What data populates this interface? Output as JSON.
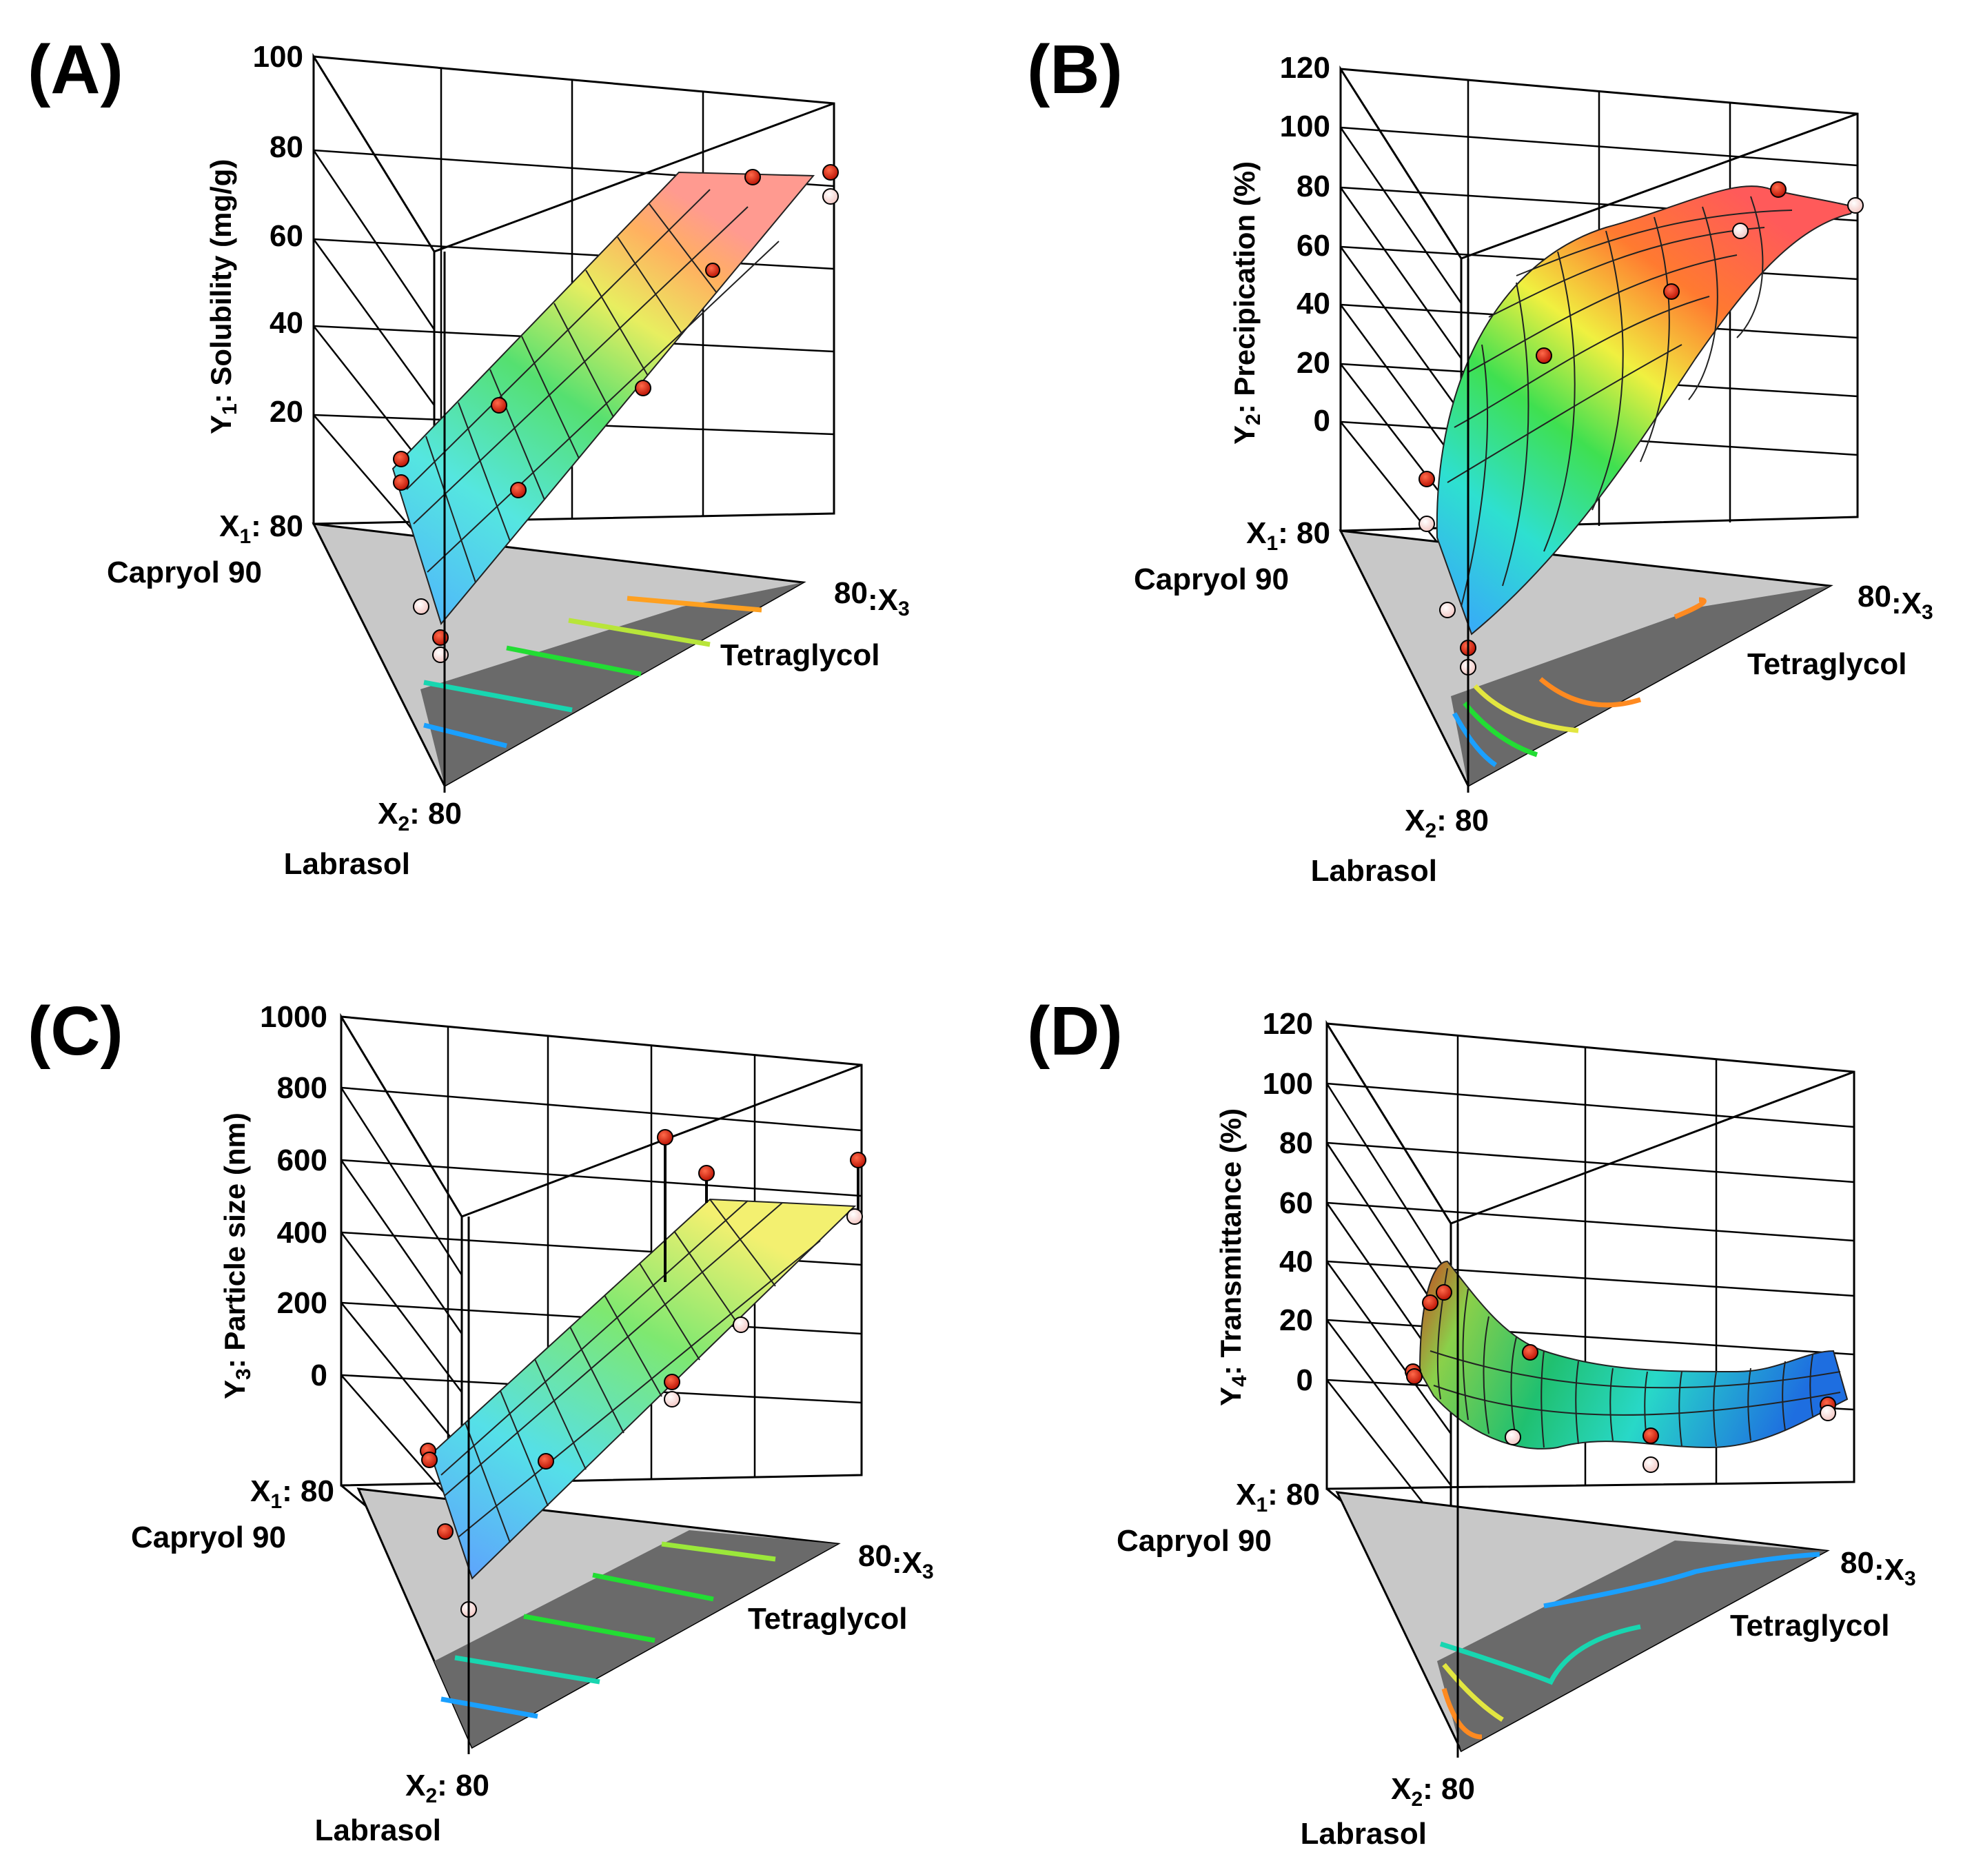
{
  "chart_data": [
    {
      "type": "ternary-surface",
      "panel": "(A)",
      "title": "",
      "z_label": "Y",
      "z_label_sub": "1",
      "z_label_rest": ": Solubility (mg/g)",
      "z_ticks": [
        "100",
        "80",
        "60",
        "40",
        "20"
      ],
      "corner_x1": "X1: 80",
      "corner_x1_name": "Capryol 90",
      "corner_x2": "X2: 80",
      "corner_x2_name": "Labrasol",
      "corner_x3": "80:X3",
      "corner_x3_name": "Tetraglycol",
      "surface_range": [
        5,
        80
      ],
      "contour_colors": [
        "#1aa0ff",
        "#18d6b0",
        "#22dd33",
        "#b8e53a",
        "#ffa020"
      ]
    },
    {
      "type": "ternary-surface",
      "panel": "(B)",
      "title": "",
      "z_label": "Y",
      "z_label_sub": "2",
      "z_label_rest": ": Precipication (%)",
      "z_ticks": [
        "120",
        "100",
        "80",
        "60",
        "40",
        "20",
        "0"
      ],
      "corner_x1": "X1: 80",
      "corner_x1_name": "Capryol 90",
      "corner_x2": "X2: 80",
      "corner_x2_name": "Labrasol",
      "corner_x3": "80:X3",
      "corner_x3_name": "Tetraglycol",
      "surface_range": [
        -20,
        85
      ],
      "contour_colors": [
        "#1aa0ff",
        "#22dd33",
        "#e2e640",
        "#ff8a20"
      ]
    },
    {
      "type": "ternary-surface",
      "panel": "(C)",
      "title": "",
      "z_label": "Y",
      "z_label_sub": "3",
      "z_label_rest": ": Particle size (nm)",
      "z_ticks": [
        "1000",
        "800",
        "600",
        "400",
        "200",
        "0"
      ],
      "corner_x1": "X1: 80",
      "corner_x1_name": "Capryol 90",
      "corner_x2": "X2: 80",
      "corner_x2_name": "Labrasol",
      "corner_x3": "80:X3",
      "corner_x3_name": "Tetraglycol",
      "surface_range": [
        -200,
        480
      ],
      "contour_colors": [
        "#1aa0ff",
        "#18d6b0",
        "#22dd33",
        "#22dd33",
        "#9be83a"
      ]
    },
    {
      "type": "ternary-surface",
      "panel": "(D)",
      "title": "",
      "z_label": "Y",
      "z_label_sub": "4",
      "z_label_rest": ": Transmittance (%)",
      "z_ticks": [
        "120",
        "100",
        "80",
        "60",
        "40",
        "20",
        "0"
      ],
      "corner_x1": "X1: 80",
      "corner_x1_name": "Capryol 90",
      "corner_x2": "X2: 80",
      "corner_x2_name": "Labrasol",
      "corner_x3": "80:X3",
      "corner_x3_name": "Tetraglycol",
      "surface_range": [
        -20,
        40
      ],
      "contour_colors": [
        "#ff8a20",
        "#e2e640",
        "#18d6b0",
        "#1aa0ff"
      ]
    }
  ]
}
